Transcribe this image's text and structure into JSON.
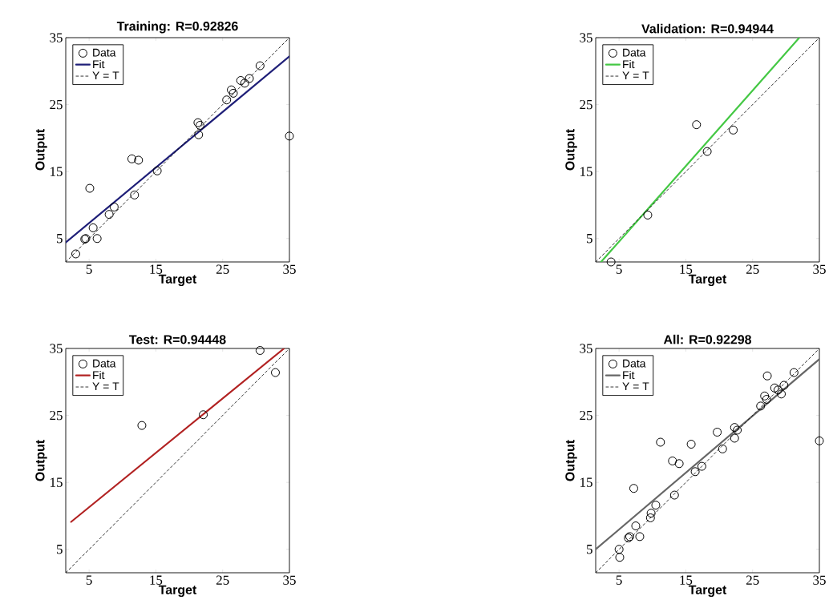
{
  "chart_data": [
    {
      "type": "scatter",
      "title": "Training: R=0.92826",
      "xlabel": "Target",
      "ylabel": "Output",
      "xlim": [
        1.5,
        35
      ],
      "ylim": [
        1.5,
        35
      ],
      "xticks": [
        5,
        15,
        25,
        35
      ],
      "yticks": [
        5,
        15,
        25,
        35
      ],
      "legend": "top left",
      "series": [
        {
          "name": "Data",
          "type": "scatter",
          "marker": "circle",
          "color": "#000000",
          "x": [
            3.0,
            4.35,
            4.5,
            6.2,
            5.6,
            5.1,
            8.0,
            8.75,
            11.8,
            11.4,
            12.4,
            15.2,
            21.3,
            21.6,
            21.4,
            25.6,
            26.3,
            26.6,
            27.7,
            28.3,
            29.0,
            30.6,
            35
          ],
          "values": [
            2.7,
            4.9,
            5.0,
            5.0,
            6.6,
            12.5,
            8.6,
            9.7,
            11.5,
            16.9,
            16.7,
            15.1,
            22.3,
            21.9,
            20.5,
            25.7,
            27.2,
            26.7,
            28.6,
            28.2,
            28.9,
            30.8,
            20.3
          ]
        },
        {
          "name": "Fit",
          "type": "line",
          "color": "#1f1f78",
          "x": [
            1.5,
            35
          ],
          "values": [
            4.4,
            32.2
          ]
        },
        {
          "name": "Y = T",
          "type": "line",
          "line_style": "dashed",
          "color": "#000000",
          "x": [
            1.5,
            35
          ],
          "values": [
            1.5,
            35
          ]
        }
      ]
    },
    {
      "type": "scatter",
      "title": "Validation: R=0.94944",
      "xlabel": "Target",
      "ylabel": "Output",
      "xlim": [
        1.5,
        35
      ],
      "ylim": [
        1.5,
        35
      ],
      "xticks": [
        5,
        15,
        25,
        35
      ],
      "yticks": [
        5,
        15,
        25,
        35
      ],
      "legend": "top left",
      "series": [
        {
          "name": "Data",
          "type": "scatter",
          "marker": "circle",
          "color": "#000000",
          "x": [
            3.8,
            9.3,
            16.6,
            18.2,
            22.1
          ],
          "values": [
            1.5,
            8.5,
            22.0,
            18.0,
            21.2
          ]
        },
        {
          "name": "Fit",
          "type": "line",
          "color": "#44c844",
          "x": [
            2.3,
            32.0
          ],
          "values": [
            1.5,
            35
          ]
        },
        {
          "name": "Y = T",
          "type": "line",
          "line_style": "dashed",
          "color": "#000000",
          "x": [
            1.5,
            35
          ],
          "values": [
            1.5,
            35
          ]
        }
      ]
    },
    {
      "type": "scatter",
      "title": "Test: R=0.94448",
      "xlabel": "Target",
      "ylabel": "Output",
      "xlim": [
        1.5,
        35
      ],
      "ylim": [
        1.5,
        35
      ],
      "xticks": [
        5,
        15,
        25,
        35
      ],
      "yticks": [
        5,
        15,
        25,
        35
      ],
      "legend": "top left",
      "series": [
        {
          "name": "Data",
          "type": "scatter",
          "marker": "circle",
          "color": "#000000",
          "x": [
            12.9,
            22.1,
            30.6,
            32.9
          ],
          "values": [
            23.5,
            25.1,
            34.7,
            31.4
          ]
        },
        {
          "name": "Fit",
          "type": "line",
          "color": "#b22222",
          "x": [
            2.3,
            34.2
          ],
          "values": [
            9.1,
            35
          ]
        },
        {
          "name": "Y = T",
          "type": "line",
          "line_style": "dashed",
          "color": "#000000",
          "x": [
            1.5,
            35
          ],
          "values": [
            1.5,
            35
          ]
        }
      ]
    },
    {
      "type": "scatter",
      "title": "All: R=0.92298",
      "xlabel": "Target",
      "ylabel": "Output",
      "xlim": [
        1.5,
        35
      ],
      "ylim": [
        1.5,
        35
      ],
      "xticks": [
        5,
        15,
        25,
        35
      ],
      "yticks": [
        5,
        15,
        25,
        35
      ],
      "legend": "top left",
      "series": [
        {
          "name": "Data",
          "type": "scatter",
          "marker": "circle",
          "color": "#000000",
          "x": [
            5.1,
            5.0,
            6.4,
            6.6,
            7.5,
            8.1,
            7.2,
            9.7,
            9.8,
            10.5,
            11.2,
            13.0,
            14.0,
            13.3,
            15.8,
            16.4,
            17.4,
            19.7,
            20.5,
            22.3,
            22.3,
            22.7,
            26.2,
            26.8,
            27.1,
            27.2,
            28.3,
            28.8,
            29.3,
            29.7,
            31.2,
            35
          ],
          "values": [
            3.8,
            5.0,
            6.7,
            6.9,
            8.5,
            6.9,
            14.1,
            9.7,
            10.4,
            11.6,
            21.0,
            18.2,
            17.8,
            13.1,
            20.7,
            16.6,
            17.4,
            22.5,
            20.0,
            21.6,
            23.2,
            22.8,
            26.4,
            27.9,
            27.4,
            30.9,
            29.1,
            28.8,
            28.2,
            29.5,
            31.4,
            21.2
          ]
        },
        {
          "name": "Fit",
          "type": "line",
          "color": "#666666",
          "x": [
            1.5,
            35
          ],
          "values": [
            5.0,
            33.4
          ]
        },
        {
          "name": "Y = T",
          "type": "line",
          "line_style": "dashed",
          "color": "#000000",
          "x": [
            1.5,
            35
          ],
          "values": [
            1.5,
            35
          ]
        }
      ]
    }
  ]
}
